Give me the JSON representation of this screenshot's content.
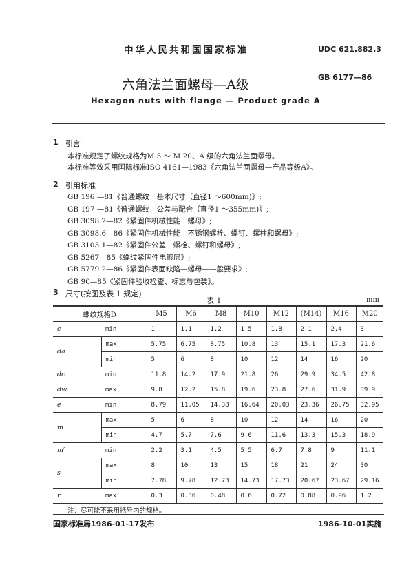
{
  "header": {
    "org": "中华人民共和国国家标准",
    "udc": "UDC 621.882.3",
    "title_cn": "六角法兰面螺母—A级",
    "standard_no": "GB 6177—86",
    "title_en": "Hexagon nuts with flange — Product grade A"
  },
  "section1": {
    "num": "1",
    "title": "引言",
    "lines": [
      "本标准规定了螺纹规格为M 5 ～ M 20、A 级的六角法兰面螺母。",
      "本标准等效采用国际标准ISO 4161—1983《六角法兰面螺母—产品等级A》。"
    ]
  },
  "section2": {
    "num": "2",
    "title": "引用标准",
    "refs": [
      "GB 196 —81《普通螺纹　基本尺寸（直径1 ～600mm)》;",
      "GB 197 —81《普通螺纹　公差与配合（直径1 ～355mm)》;",
      "GB 3098.2—82《紧固件机械性能　螺母》;",
      "GB 3098.6—86《紧固件机械性能　不锈钢螺栓、螺钉、螺柱和螺母》;",
      "GB 3103.1—82《紧固件公差　螺栓、螺钉和螺母》;",
      "GB 5267—85《螺纹紧固件电镀层》;",
      "GB 5779.2—86《紧固件表面缺陷—螺母——般要求》;",
      "GB 90—85《紧固件验收检查、标志与包装》。"
    ]
  },
  "section3": {
    "num": "3",
    "title": "尺寸(按图及表 1 规定)",
    "table_caption": "表 1",
    "unit": "mm",
    "header_label": "螺纹规格D",
    "columns": [
      "M5",
      "M6",
      "M8",
      "M10",
      "M12",
      "(M14)",
      "M16",
      "M20"
    ],
    "rows": [
      {
        "sym": "c",
        "lim": "min",
        "values": [
          "1",
          "1.1",
          "1.2",
          "1.5",
          "1.8",
          "2.1",
          "2.4",
          "3"
        ]
      },
      {
        "sym": "da",
        "lim": "max",
        "values": [
          "5.75",
          "6.75",
          "8.75",
          "10.8",
          "13",
          "15.1",
          "17.3",
          "21.6"
        ]
      },
      {
        "sym": "da",
        "lim": "min",
        "values": [
          "5",
          "6",
          "8",
          "10",
          "12",
          "14",
          "16",
          "20"
        ]
      },
      {
        "sym": "dc",
        "lim": "min",
        "values": [
          "11.8",
          "14.2",
          "17.9",
          "21.8",
          "26",
          "29.9",
          "34.5",
          "42.8"
        ]
      },
      {
        "sym": "dw",
        "lim": "max",
        "values": [
          "9.8",
          "12.2",
          "15.8",
          "19.6",
          "23.8",
          "27.6",
          "31.9",
          "39.9"
        ]
      },
      {
        "sym": "e",
        "lim": "min",
        "values": [
          "8.79",
          "11.05",
          "14.38",
          "16.64",
          "20.03",
          "23.36",
          "26.75",
          "32.95"
        ]
      },
      {
        "sym": "m",
        "lim": "max",
        "values": [
          "5",
          "6",
          "8",
          "10",
          "12",
          "14",
          "16",
          "20"
        ]
      },
      {
        "sym": "m",
        "lim": "min",
        "values": [
          "4.7",
          "5.7",
          "7.6",
          "9.6",
          "11.6",
          "13.3",
          "15.3",
          "18.9"
        ]
      },
      {
        "sym": "m′",
        "lim": "min",
        "values": [
          "2.2",
          "3.1",
          "4.5",
          "5.5",
          "6.7",
          "7.8",
          "9",
          "11.1"
        ]
      },
      {
        "sym": "s",
        "lim": "max",
        "values": [
          "8",
          "10",
          "13",
          "15",
          "18",
          "21",
          "24",
          "30"
        ]
      },
      {
        "sym": "s",
        "lim": "min",
        "values": [
          "7.78",
          "9.78",
          "12.73",
          "14.73",
          "17.73",
          "20.67",
          "23.67",
          "29.16"
        ]
      },
      {
        "sym": "r",
        "lim": "max",
        "values": [
          "0.3",
          "0.36",
          "0.48",
          "0.6",
          "0.72",
          "0.88",
          "0.96",
          "1.2"
        ]
      }
    ],
    "note": "注：尽可能不采用括号内的规格。"
  },
  "footer": {
    "issued": "国家标准局1986-01-17发布",
    "effective": "1986-10-01实施"
  }
}
